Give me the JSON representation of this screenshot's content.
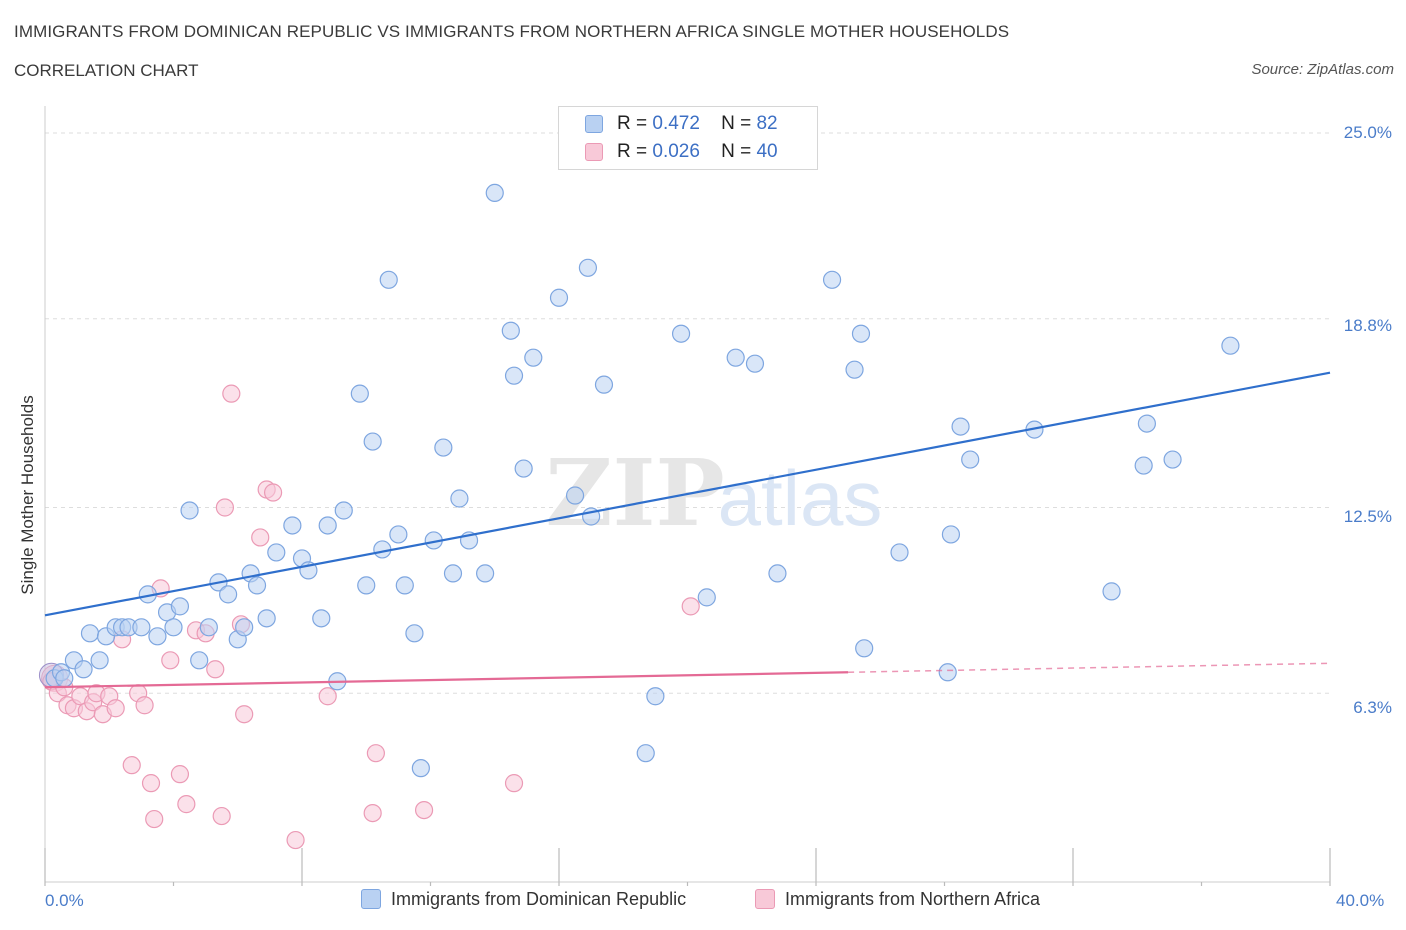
{
  "header": {
    "title": "IMMIGRANTS FROM DOMINICAN REPUBLIC VS IMMIGRANTS FROM NORTHERN AFRICA SINGLE MOTHER HOUSEHOLDS",
    "subtitle": "CORRELATION CHART",
    "source": "Source: ZipAtlas.com"
  },
  "legend": {
    "r_label": "R =",
    "n_label": "N =",
    "series1": {
      "r": "0.472",
      "n": "82"
    },
    "series2": {
      "r": "0.026",
      "n": "40"
    }
  },
  "watermark": {
    "zip": "ZIP",
    "atlas": "atlas"
  },
  "colors": {
    "blue_fill": "#b9d1f2",
    "blue_stroke": "#7ea6e0",
    "blue_line": "#2f6fcc",
    "pink_fill": "#f8c9d8",
    "pink_stroke": "#eb9ab5",
    "pink_line": "#e46a95",
    "tick_text": "#4a7cc9",
    "grid": "#dddddd"
  },
  "chart_data": {
    "type": "scatter",
    "title": "IMMIGRANTS FROM DOMINICAN REPUBLIC VS IMMIGRANTS FROM NORTHERN AFRICA SINGLE MOTHER HOUSEHOLDS",
    "xlabel": "",
    "ylabel": "Single Mother Households",
    "xlim": [
      0,
      40
    ],
    "ylim": [
      0,
      25.5
    ],
    "x_tick_labels": {
      "min": "0.0%",
      "max": "40.0%"
    },
    "y_ticks": [
      {
        "value": 6.3,
        "label": "6.3%"
      },
      {
        "value": 12.5,
        "label": "12.5%"
      },
      {
        "value": 18.8,
        "label": "18.8%"
      },
      {
        "value": 25.0,
        "label": "25.0%"
      }
    ],
    "grid": true,
    "legend_position": "top-center",
    "series": [
      {
        "name": "Immigrants from Dominican Republic",
        "r": 0.472,
        "n": 82,
        "trend": {
          "x0": 0,
          "y0": 8.9,
          "x1": 40,
          "y1": 17.0
        },
        "points": [
          [
            0.3,
            6.8
          ],
          [
            0.5,
            7.0
          ],
          [
            0.6,
            6.8
          ],
          [
            0.9,
            7.4
          ],
          [
            1.2,
            7.1
          ],
          [
            1.4,
            8.3
          ],
          [
            1.7,
            7.4
          ],
          [
            1.9,
            8.2
          ],
          [
            2.2,
            8.5
          ],
          [
            2.4,
            8.5
          ],
          [
            2.6,
            8.5
          ],
          [
            3.0,
            8.5
          ],
          [
            3.2,
            9.6
          ],
          [
            3.5,
            8.2
          ],
          [
            3.8,
            9.0
          ],
          [
            4.0,
            8.5
          ],
          [
            4.2,
            9.2
          ],
          [
            4.5,
            12.4
          ],
          [
            4.8,
            7.4
          ],
          [
            5.1,
            8.5
          ],
          [
            5.4,
            10.0
          ],
          [
            5.7,
            9.6
          ],
          [
            6.0,
            8.1
          ],
          [
            6.2,
            8.5
          ],
          [
            6.4,
            10.3
          ],
          [
            6.6,
            9.9
          ],
          [
            6.9,
            8.8
          ],
          [
            7.2,
            11.0
          ],
          [
            7.7,
            11.9
          ],
          [
            8.0,
            10.8
          ],
          [
            8.2,
            10.4
          ],
          [
            8.6,
            8.8
          ],
          [
            8.8,
            11.9
          ],
          [
            9.1,
            6.7
          ],
          [
            9.3,
            12.4
          ],
          [
            9.8,
            16.3
          ],
          [
            10.0,
            9.9
          ],
          [
            10.2,
            14.7
          ],
          [
            10.5,
            11.1
          ],
          [
            10.7,
            20.1
          ],
          [
            11.0,
            11.6
          ],
          [
            11.2,
            9.9
          ],
          [
            11.5,
            8.3
          ],
          [
            11.7,
            3.8
          ],
          [
            12.1,
            11.4
          ],
          [
            12.4,
            14.5
          ],
          [
            12.7,
            10.3
          ],
          [
            12.9,
            12.8
          ],
          [
            13.2,
            11.4
          ],
          [
            13.7,
            10.3
          ],
          [
            14.0,
            23.0
          ],
          [
            14.5,
            18.4
          ],
          [
            14.6,
            16.9
          ],
          [
            14.9,
            13.8
          ],
          [
            15.2,
            17.5
          ],
          [
            16.0,
            19.5
          ],
          [
            16.5,
            12.9
          ],
          [
            16.9,
            20.5
          ],
          [
            17.0,
            12.2
          ],
          [
            17.4,
            16.6
          ],
          [
            18.7,
            4.3
          ],
          [
            19.0,
            6.2
          ],
          [
            19.8,
            18.3
          ],
          [
            20.6,
            9.5
          ],
          [
            21.5,
            17.5
          ],
          [
            22.1,
            17.3
          ],
          [
            22.8,
            10.3
          ],
          [
            24.5,
            20.1
          ],
          [
            25.2,
            17.1
          ],
          [
            25.4,
            18.3
          ],
          [
            25.5,
            7.8
          ],
          [
            26.6,
            11.0
          ],
          [
            28.1,
            7.0
          ],
          [
            28.2,
            11.6
          ],
          [
            28.5,
            15.2
          ],
          [
            28.8,
            14.1
          ],
          [
            30.8,
            15.1
          ],
          [
            33.2,
            9.7
          ],
          [
            34.2,
            13.9
          ],
          [
            34.3,
            15.3
          ],
          [
            35.1,
            14.1
          ],
          [
            36.9,
            17.9
          ]
        ]
      },
      {
        "name": "Immigrants from Northern Africa",
        "r": 0.026,
        "n": 40,
        "trend": {
          "x0": 0,
          "y0": 6.5,
          "x1": 25,
          "y1": 7.0,
          "dashed_to_x": 40,
          "dashed_to_y": 7.3
        },
        "points": [
          [
            0.2,
            6.7
          ],
          [
            0.4,
            6.3
          ],
          [
            0.6,
            6.5
          ],
          [
            0.7,
            5.9
          ],
          [
            0.9,
            5.8
          ],
          [
            1.1,
            6.2
          ],
          [
            1.3,
            5.7
          ],
          [
            1.5,
            6.0
          ],
          [
            1.6,
            6.3
          ],
          [
            1.8,
            5.6
          ],
          [
            2.0,
            6.2
          ],
          [
            2.2,
            5.8
          ],
          [
            2.4,
            8.1
          ],
          [
            2.7,
            3.9
          ],
          [
            2.9,
            6.3
          ],
          [
            3.1,
            5.9
          ],
          [
            3.3,
            3.3
          ],
          [
            3.4,
            2.1
          ],
          [
            3.6,
            9.8
          ],
          [
            3.9,
            7.4
          ],
          [
            4.2,
            3.6
          ],
          [
            4.4,
            2.6
          ],
          [
            4.7,
            8.4
          ],
          [
            5.0,
            8.3
          ],
          [
            5.3,
            7.1
          ],
          [
            5.5,
            2.2
          ],
          [
            5.8,
            16.3
          ],
          [
            6.1,
            8.6
          ],
          [
            6.2,
            5.6
          ],
          [
            6.7,
            11.5
          ],
          [
            6.9,
            13.1
          ],
          [
            7.1,
            13.0
          ],
          [
            7.8,
            1.4
          ],
          [
            8.8,
            6.2
          ],
          [
            10.2,
            2.3
          ],
          [
            10.3,
            4.3
          ],
          [
            11.8,
            2.4
          ],
          [
            14.6,
            3.3
          ],
          [
            5.6,
            12.5
          ],
          [
            20.1,
            9.2
          ]
        ]
      }
    ]
  },
  "bottom_legend": {
    "series1_label": "Immigrants from Dominican Republic",
    "series2_label": "Immigrants from Northern Africa"
  }
}
